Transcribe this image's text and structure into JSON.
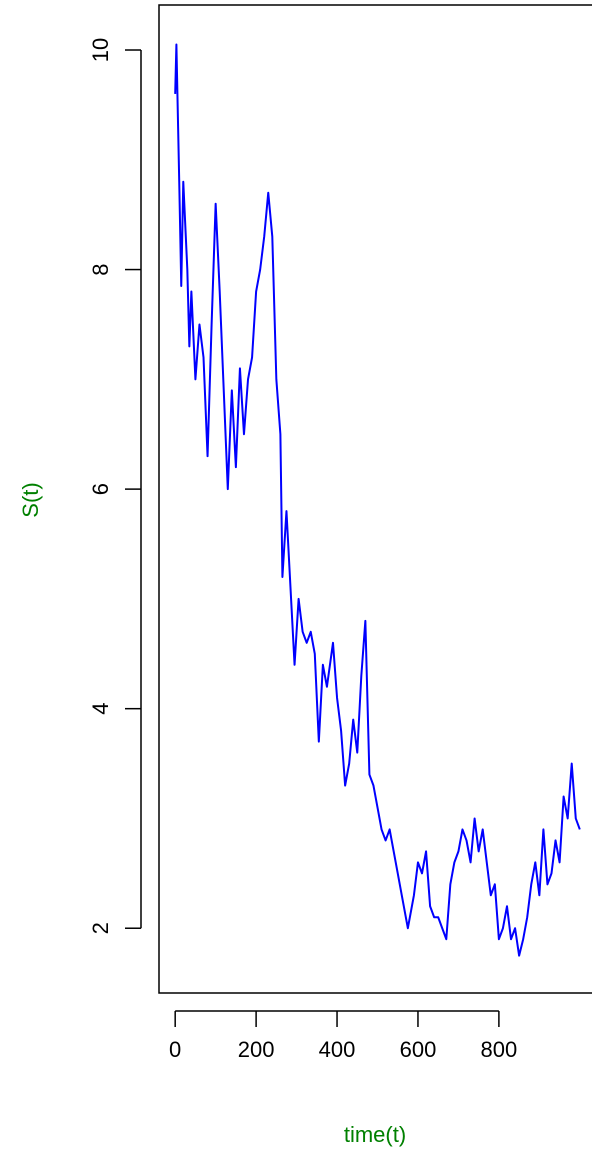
{
  "chart_data": {
    "type": "line",
    "x_label": "time(t)",
    "y_label": "S(t)",
    "x": [
      0,
      3,
      10,
      15,
      20,
      30,
      35,
      40,
      50,
      60,
      70,
      80,
      90,
      100,
      110,
      120,
      130,
      140,
      150,
      160,
      170,
      180,
      190,
      200,
      210,
      220,
      230,
      240,
      250,
      260,
      265,
      275,
      285,
      295,
      305,
      315,
      325,
      335,
      345,
      355,
      365,
      375,
      390,
      400,
      410,
      420,
      430,
      440,
      450,
      460,
      470,
      480,
      490,
      500,
      510,
      520,
      530,
      540,
      550,
      560,
      575,
      590,
      600,
      610,
      620,
      630,
      640,
      650,
      660,
      670,
      680,
      690,
      700,
      710,
      720,
      730,
      740,
      750,
      760,
      770,
      780,
      790,
      800,
      810,
      820,
      830,
      840,
      850,
      860,
      870,
      880,
      890,
      900,
      910,
      920,
      930,
      940,
      950,
      960,
      970,
      980,
      990,
      1000
    ],
    "series": [
      {
        "name": "S(t)",
        "color": "#0000ff",
        "values": [
          9.6,
          10.05,
          8.8,
          7.85,
          8.8,
          8.0,
          7.3,
          7.8,
          7.0,
          7.5,
          7.2,
          6.3,
          7.5,
          8.6,
          7.8,
          6.9,
          6.0,
          6.9,
          6.2,
          7.1,
          6.5,
          7.0,
          7.2,
          7.8,
          8.0,
          8.3,
          8.7,
          8.3,
          7.0,
          6.5,
          5.2,
          5.8,
          5.1,
          4.4,
          5.0,
          4.7,
          4.6,
          4.7,
          4.5,
          3.7,
          4.4,
          4.2,
          4.6,
          4.1,
          3.8,
          3.3,
          3.5,
          3.9,
          3.6,
          4.3,
          4.8,
          3.4,
          3.3,
          3.1,
          2.9,
          2.8,
          2.9,
          2.7,
          2.5,
          2.3,
          2.0,
          2.3,
          2.6,
          2.5,
          2.7,
          2.2,
          2.1,
          2.1,
          2.0,
          1.9,
          2.4,
          2.6,
          2.7,
          2.9,
          2.8,
          2.6,
          3.0,
          2.7,
          2.9,
          2.6,
          2.3,
          2.4,
          1.9,
          2.0,
          2.2,
          1.9,
          2.0,
          1.75,
          1.9,
          2.1,
          2.4,
          2.6,
          2.3,
          2.9,
          2.4,
          2.5,
          2.8,
          2.6,
          3.2,
          3.0,
          3.5,
          3.0,
          2.9
        ]
      }
    ],
    "xlim": [
      -40,
      1040
    ],
    "ylim": [
      1.41,
      10.41
    ],
    "xticks": [
      0,
      200,
      400,
      600,
      800
    ],
    "yticks": [
      2,
      4,
      6,
      8,
      10
    ]
  }
}
